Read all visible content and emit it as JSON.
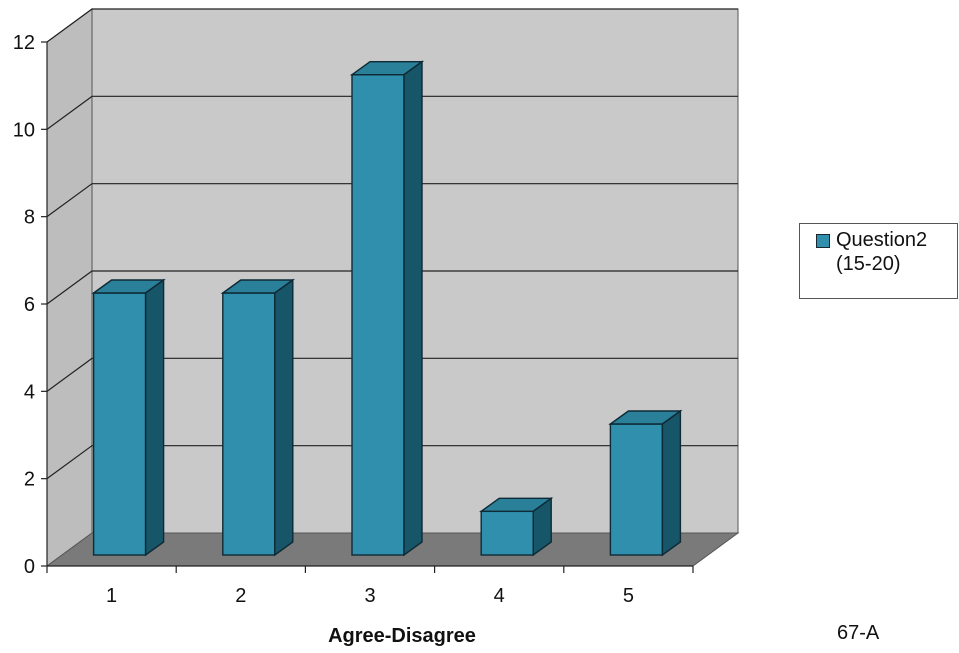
{
  "chart_data": {
    "type": "bar",
    "style": "3d",
    "categories": [
      "1",
      "2",
      "3",
      "4",
      "5"
    ],
    "series": [
      {
        "name": "Question2\n(15-20)",
        "values": [
          6,
          6,
          11,
          1,
          3
        ]
      }
    ],
    "xlabel": "Agree-Disagree",
    "ylabel": "",
    "ylim": [
      0,
      12
    ],
    "yticks": [
      "0",
      "2",
      "4",
      "6",
      "8",
      "10",
      "12"
    ],
    "grid": true,
    "legend": "right",
    "colors": {
      "bar_front": "#2f8fad",
      "bar_top": "#2a7f99",
      "bar_side": "#175568",
      "wall": "#c9c9c9",
      "floor": "#7a7a7a"
    }
  },
  "footer": {
    "code": "67-A"
  }
}
